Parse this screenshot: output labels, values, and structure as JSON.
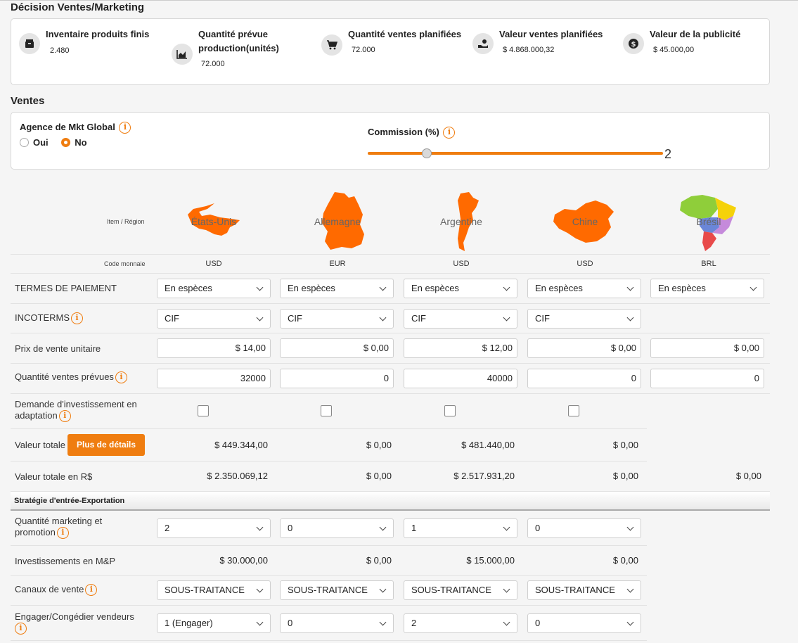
{
  "decision": {
    "title": "Décision Ventes/Marketing",
    "stats": [
      {
        "icon": "box-icon",
        "label": "Inventaire produits finis",
        "value": "2.480"
      },
      {
        "icon": "area-chart-icon",
        "label": "Quantité prévue",
        "label2": "production(unités)",
        "value": "72.000"
      },
      {
        "icon": "cart-icon",
        "label": "Quantité ventes planifiées",
        "value": "72.000"
      },
      {
        "icon": "hand-money-icon",
        "label": "Valeur ventes planifiées",
        "value": "$ 4.868.000,32"
      },
      {
        "icon": "dollar-coin-icon",
        "label": "Valeur de la publicité",
        "value": "$ 45.000,00"
      }
    ]
  },
  "ventes": {
    "title": "Ventes",
    "agency_label": "Agence de Mkt Global",
    "opt_yes": "Oui",
    "opt_no": "No",
    "selected": "No",
    "commission_label": "Commission (%)",
    "commission_value": "2",
    "commission_fraction": 0.2
  },
  "table": {
    "corner_label": "Item / Région",
    "currency_label": "Code monnaie",
    "regions": [
      {
        "name": "États-Unis",
        "currency": "USD"
      },
      {
        "name": "Allemagne",
        "currency": "EUR"
      },
      {
        "name": "Argentine",
        "currency": "USD"
      },
      {
        "name": "Chine",
        "currency": "USD"
      },
      {
        "name": "Brésil",
        "currency": "BRL"
      }
    ],
    "payment_label": "TERMES DE PAIEMENT",
    "payment": [
      "En espèces",
      "En espèces",
      "En espèces",
      "En espèces",
      "En espèces"
    ],
    "incoterms_label": "INCOTERMS",
    "incoterms": [
      "CIF",
      "CIF",
      "CIF",
      "CIF"
    ],
    "price_label": "Prix de vente unitaire",
    "prices": [
      "$ 14,00",
      "$ 0,00",
      "$ 12,00",
      "$ 0,00",
      "$ 0,00"
    ],
    "qty_label": "Quantité ventes prévues",
    "qtys": [
      "32000",
      "0",
      "40000",
      "0",
      "0"
    ],
    "adapt_label1": "Demande d'investissement en",
    "adapt_label2": "adaptation",
    "total_label": "Valeur totale",
    "details_button": "Plus de détails",
    "totals": [
      "$ 449.344,00",
      "$ 0,00",
      "$ 481.440,00",
      "$ 0,00"
    ],
    "total_rs_label": "Valeur totale en R$",
    "totals_rs": [
      "$ 2.350.069,12",
      "$ 0,00",
      "$ 2.517.931,20",
      "$ 0,00",
      "$ 0,00"
    ],
    "strategy_title": "Stratégie d'entrée-Exportation",
    "mkt_label1": "Quantité marketing et",
    "mkt_label2": "promotion",
    "mkt": [
      "2",
      "0",
      "1",
      "0"
    ],
    "invest_label": "Investissements en M&P",
    "invest": [
      "$ 30.000,00",
      "$ 0,00",
      "$ 15.000,00",
      "$ 0,00"
    ],
    "channels_label": "Canaux de vente",
    "channels": [
      "SOUS-TRAITANCE",
      "SOUS-TRAITANCE",
      "SOUS-TRAITANCE",
      "SOUS-TRAITANCE"
    ],
    "sellers_label1": "Engager/Congédier vendeurs",
    "sellers": [
      "1 (Engager)",
      "0",
      "2",
      "0"
    ]
  },
  "colors": {
    "accent": "#ef7d10"
  }
}
